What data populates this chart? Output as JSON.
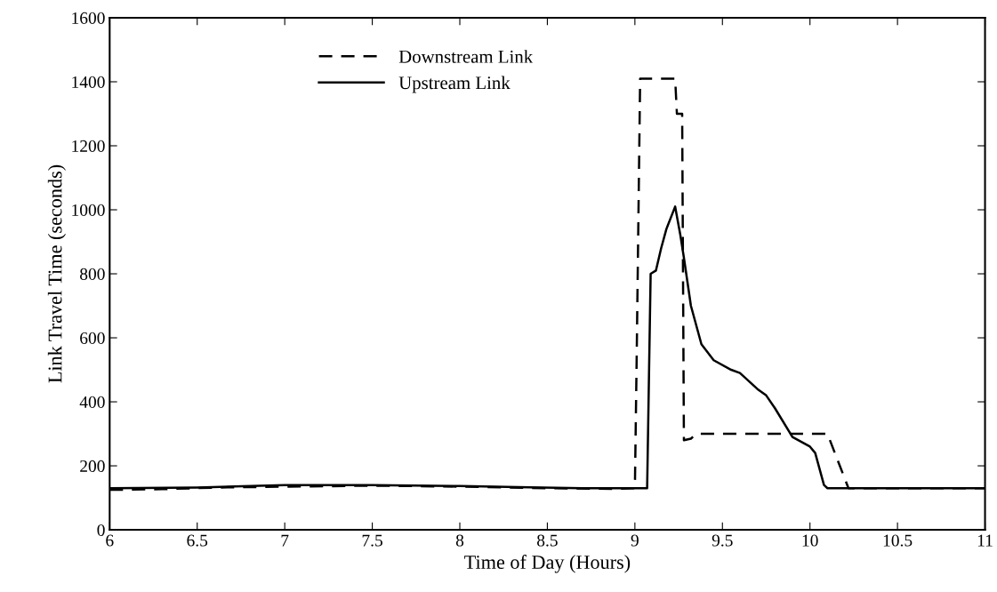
{
  "chart_data": {
    "type": "line",
    "xlabel": "Time of Day (Hours)",
    "ylabel": "Link Travel Time (seconds)",
    "xlim": [
      6,
      11
    ],
    "xticks": [
      6,
      6.5,
      7,
      7.5,
      8,
      8.5,
      9,
      9.5,
      10,
      10.5,
      11
    ],
    "ylim": [
      0,
      1600
    ],
    "yticks": [
      0,
      200,
      400,
      600,
      800,
      1000,
      1200,
      1400,
      1600
    ],
    "grid": false,
    "legend": "top left",
    "series": [
      {
        "name": "Downstream Link",
        "color": "#000000",
        "line_style": "dashed",
        "x": [
          6,
          6.3,
          6.6,
          7,
          7.5,
          8,
          8.5,
          8.9,
          9.0,
          9.01,
          9.03,
          9.23,
          9.24,
          9.27,
          9.28,
          9.32,
          9.35,
          10.1,
          10.22,
          10.5,
          11
        ],
        "values": [
          125,
          127,
          132,
          135,
          138,
          135,
          130,
          128,
          130,
          530,
          1410,
          1410,
          1300,
          1300,
          280,
          285,
          300,
          300,
          130,
          130,
          130
        ]
      },
      {
        "name": "Upstream Link",
        "color": "#000000",
        "line_style": "solid",
        "x": [
          6,
          6.5,
          7,
          7.5,
          8,
          8.4,
          8.7,
          9.07,
          9.09,
          9.12,
          9.15,
          9.18,
          9.23,
          9.26,
          9.28,
          9.32,
          9.38,
          9.45,
          9.55,
          9.6,
          9.7,
          9.75,
          9.8,
          9.9,
          10.0,
          10.03,
          10.08,
          10.1,
          10.5,
          11
        ],
        "values": [
          130,
          132,
          140,
          140,
          137,
          133,
          130,
          130,
          800,
          810,
          880,
          940,
          1010,
          920,
          850,
          700,
          580,
          530,
          500,
          490,
          440,
          420,
          380,
          290,
          260,
          240,
          140,
          130,
          130,
          130
        ]
      }
    ]
  }
}
